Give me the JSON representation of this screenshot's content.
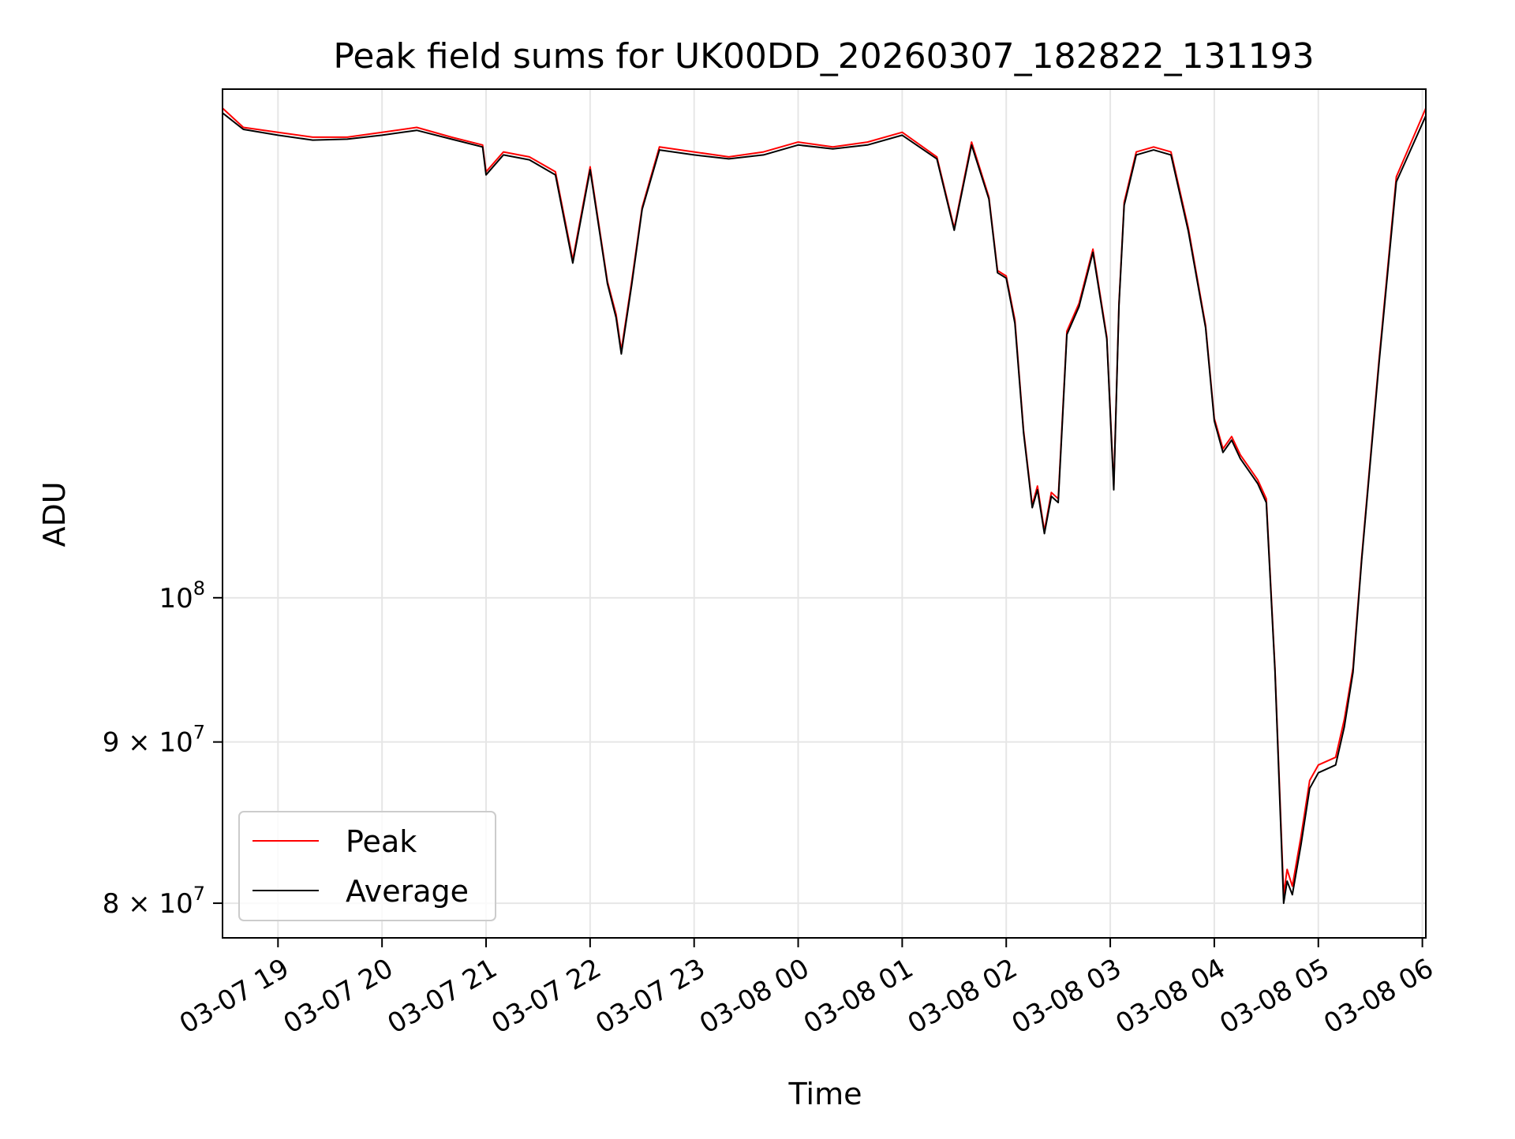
{
  "chart_data": {
    "type": "line",
    "title": "Peak field sums for UK00DD_20260307_182822_131193",
    "xlabel": "Time",
    "ylabel": "ADU",
    "y_scale": "log",
    "ylim": [
      78000000,
      145000000
    ],
    "xlim": [
      "2026-03-07 18:28",
      "2026-03-08 06:02"
    ],
    "grid": true,
    "legend_position": "lower-left",
    "x_ticks": [
      {
        "t": "2026-03-07 19:00",
        "label": "03-07 19"
      },
      {
        "t": "2026-03-07 20:00",
        "label": "03-07 20"
      },
      {
        "t": "2026-03-07 21:00",
        "label": "03-07 21"
      },
      {
        "t": "2026-03-07 22:00",
        "label": "03-07 22"
      },
      {
        "t": "2026-03-07 23:00",
        "label": "03-07 23"
      },
      {
        "t": "2026-03-08 00:00",
        "label": "03-08 00"
      },
      {
        "t": "2026-03-08 01:00",
        "label": "03-08 01"
      },
      {
        "t": "2026-03-08 02:00",
        "label": "03-08 02"
      },
      {
        "t": "2026-03-08 03:00",
        "label": "03-08 03"
      },
      {
        "t": "2026-03-08 04:00",
        "label": "03-08 04"
      },
      {
        "t": "2026-03-08 05:00",
        "label": "03-08 05"
      },
      {
        "t": "2026-03-08 06:00",
        "label": "03-08 06"
      }
    ],
    "y_ticks": [
      {
        "value": 80000000,
        "label": "8 × 10",
        "exp": "7"
      },
      {
        "value": 90000000,
        "label": "9 × 10",
        "exp": "7"
      },
      {
        "value": 100000000,
        "label": "10",
        "exp": "8"
      }
    ],
    "series": [
      {
        "name": "Peak",
        "color": "#ff0000",
        "x": [
          "2026-03-07 18:28",
          "2026-03-07 18:40",
          "2026-03-07 19:00",
          "2026-03-07 19:20",
          "2026-03-07 19:40",
          "2026-03-07 20:00",
          "2026-03-07 20:20",
          "2026-03-07 20:40",
          "2026-03-07 20:58",
          "2026-03-07 21:00",
          "2026-03-07 21:10",
          "2026-03-07 21:25",
          "2026-03-07 21:40",
          "2026-03-07 21:50",
          "2026-03-07 22:00",
          "2026-03-07 22:10",
          "2026-03-07 22:15",
          "2026-03-07 22:18",
          "2026-03-07 22:24",
          "2026-03-07 22:30",
          "2026-03-07 22:40",
          "2026-03-07 23:00",
          "2026-03-07 23:20",
          "2026-03-07 23:40",
          "2026-03-08 00:00",
          "2026-03-08 00:20",
          "2026-03-08 00:40",
          "2026-03-08 01:00",
          "2026-03-08 01:20",
          "2026-03-08 01:30",
          "2026-03-08 01:40",
          "2026-03-08 01:50",
          "2026-03-08 01:55",
          "2026-03-08 02:00",
          "2026-03-08 02:05",
          "2026-03-08 02:10",
          "2026-03-08 02:15",
          "2026-03-08 02:18",
          "2026-03-08 02:22",
          "2026-03-08 02:26",
          "2026-03-08 02:30",
          "2026-03-08 02:35",
          "2026-03-08 02:42",
          "2026-03-08 02:50",
          "2026-03-08 02:58",
          "2026-03-08 03:02",
          "2026-03-08 03:05",
          "2026-03-08 03:08",
          "2026-03-08 03:15",
          "2026-03-08 03:25",
          "2026-03-08 03:35",
          "2026-03-08 03:45",
          "2026-03-08 03:55",
          "2026-03-08 04:00",
          "2026-03-08 04:05",
          "2026-03-08 04:10",
          "2026-03-08 04:15",
          "2026-03-08 04:20",
          "2026-03-08 04:25",
          "2026-03-08 04:30",
          "2026-03-08 04:35",
          "2026-03-08 04:40",
          "2026-03-08 04:42",
          "2026-03-08 04:45",
          "2026-03-08 04:50",
          "2026-03-08 04:55",
          "2026-03-08 05:00",
          "2026-03-08 05:10",
          "2026-03-08 05:15",
          "2026-03-08 05:20",
          "2026-03-08 05:25",
          "2026-03-08 05:35",
          "2026-03-08 05:45",
          "2026-03-08 06:02"
        ],
        "values": [
          143000000,
          141000000,
          140500000,
          140000000,
          140000000,
          140500000,
          141000000,
          140000000,
          139200000,
          136500000,
          138500000,
          138000000,
          136500000,
          128000000,
          137000000,
          126000000,
          123000000,
          119800000,
          126000000,
          133000000,
          139000000,
          138500000,
          138000000,
          138500000,
          139500000,
          139000000,
          139500000,
          140500000,
          138000000,
          131000000,
          139500000,
          134000000,
          127000000,
          126500000,
          122500000,
          113000000,
          107000000,
          108500000,
          105000000,
          108000000,
          107500000,
          121500000,
          124000000,
          129000000,
          121000000,
          108500000,
          124000000,
          133500000,
          138500000,
          139000000,
          138500000,
          131000000,
          122000000,
          114000000,
          111500000,
          112500000,
          111000000,
          110000000,
          109000000,
          107500000,
          95000000,
          80500000,
          82000000,
          81000000,
          84000000,
          87500000,
          88500000,
          89000000,
          91500000,
          95000000,
          103000000,
          119000000,
          136000000,
          143000000
        ]
      },
      {
        "name": "Average",
        "color": "#000000",
        "x": [
          "2026-03-07 18:28",
          "2026-03-07 18:40",
          "2026-03-07 19:00",
          "2026-03-07 19:20",
          "2026-03-07 19:40",
          "2026-03-07 20:00",
          "2026-03-07 20:20",
          "2026-03-07 20:40",
          "2026-03-07 20:58",
          "2026-03-07 21:00",
          "2026-03-07 21:10",
          "2026-03-07 21:25",
          "2026-03-07 21:40",
          "2026-03-07 21:50",
          "2026-03-07 22:00",
          "2026-03-07 22:10",
          "2026-03-07 22:15",
          "2026-03-07 22:18",
          "2026-03-07 22:24",
          "2026-03-07 22:30",
          "2026-03-07 22:40",
          "2026-03-07 23:00",
          "2026-03-07 23:20",
          "2026-03-07 23:40",
          "2026-03-08 00:00",
          "2026-03-08 00:20",
          "2026-03-08 00:40",
          "2026-03-08 01:00",
          "2026-03-08 01:20",
          "2026-03-08 01:30",
          "2026-03-08 01:40",
          "2026-03-08 01:50",
          "2026-03-08 01:55",
          "2026-03-08 02:00",
          "2026-03-08 02:05",
          "2026-03-08 02:10",
          "2026-03-08 02:15",
          "2026-03-08 02:18",
          "2026-03-08 02:22",
          "2026-03-08 02:26",
          "2026-03-08 02:30",
          "2026-03-08 02:35",
          "2026-03-08 02:42",
          "2026-03-08 02:50",
          "2026-03-08 02:58",
          "2026-03-08 03:02",
          "2026-03-08 03:05",
          "2026-03-08 03:08",
          "2026-03-08 03:15",
          "2026-03-08 03:25",
          "2026-03-08 03:35",
          "2026-03-08 03:45",
          "2026-03-08 03:55",
          "2026-03-08 04:00",
          "2026-03-08 04:05",
          "2026-03-08 04:10",
          "2026-03-08 04:15",
          "2026-03-08 04:20",
          "2026-03-08 04:25",
          "2026-03-08 04:30",
          "2026-03-08 04:35",
          "2026-03-08 04:40",
          "2026-03-08 04:42",
          "2026-03-08 04:45",
          "2026-03-08 04:50",
          "2026-03-08 04:55",
          "2026-03-08 05:00",
          "2026-03-08 05:10",
          "2026-03-08 05:15",
          "2026-03-08 05:20",
          "2026-03-08 05:25",
          "2026-03-08 05:35",
          "2026-03-08 05:45",
          "2026-03-08 06:02"
        ],
        "values": [
          142500000,
          140800000,
          140200000,
          139700000,
          139800000,
          140200000,
          140700000,
          139800000,
          139000000,
          136200000,
          138200000,
          137700000,
          136200000,
          127700000,
          136700000,
          125800000,
          122700000,
          119500000,
          125700000,
          132800000,
          138700000,
          138200000,
          137800000,
          138200000,
          139200000,
          138800000,
          139200000,
          140200000,
          137800000,
          130800000,
          139200000,
          133800000,
          126800000,
          126300000,
          122200000,
          112800000,
          106800000,
          108200000,
          104800000,
          107700000,
          107200000,
          121200000,
          123700000,
          128700000,
          120800000,
          108200000,
          123800000,
          133200000,
          138200000,
          138700000,
          138200000,
          130700000,
          121800000,
          113800000,
          111200000,
          112200000,
          110700000,
          109700000,
          108700000,
          107200000,
          94800000,
          80000000,
          81300000,
          80500000,
          83500000,
          87000000,
          88000000,
          88500000,
          91000000,
          94700000,
          102800000,
          118700000,
          135500000,
          142200000
        ]
      }
    ]
  }
}
